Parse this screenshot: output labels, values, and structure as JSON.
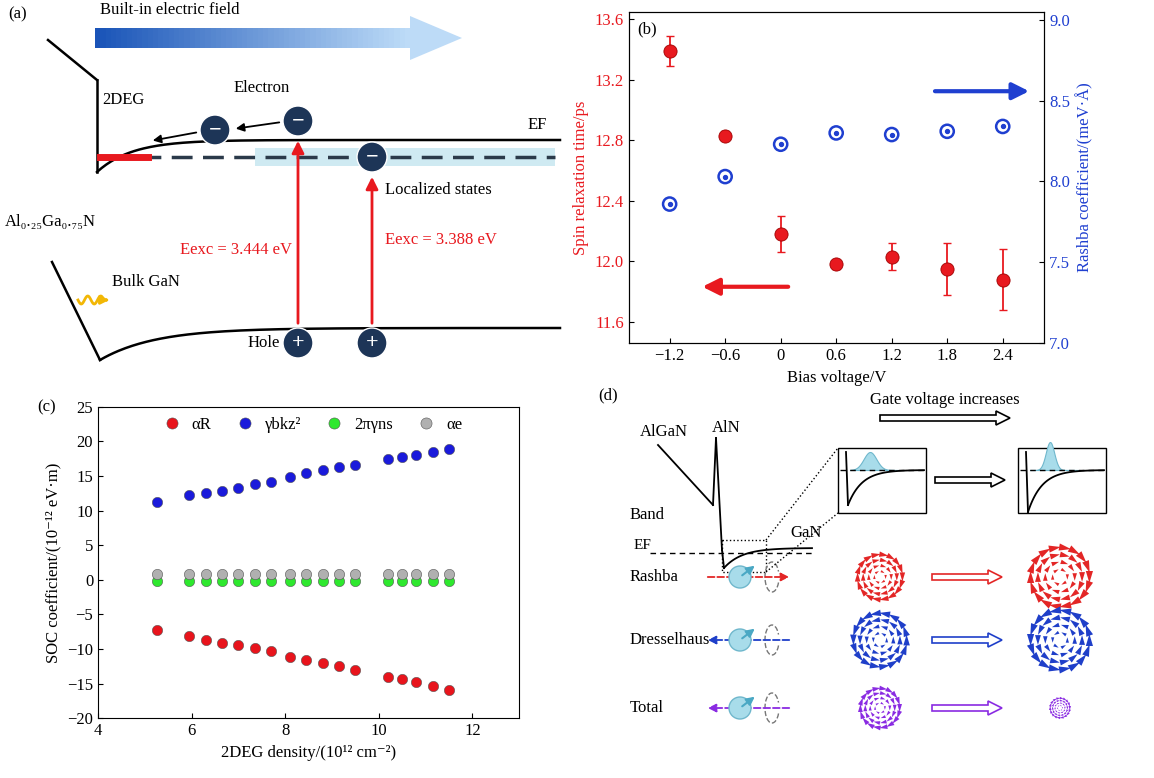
{
  "chart_data": [
    {
      "type": "scatter",
      "title": "(b)",
      "xlabel": "Bias voltage/V",
      "ylabel": "Spin relaxation time/ps",
      "y2label": "Rashba coefficient/(meV·Å)",
      "x": [
        -1.2,
        -0.6,
        0,
        0.6,
        1.2,
        1.8,
        2.4
      ],
      "xlim": [
        -1.64,
        2.85
      ],
      "xticks": [
        {
          "value": -1.2,
          "label": "−1.2"
        },
        {
          "value": -0.6,
          "label": "−0.6"
        },
        0,
        0.6,
        1.2,
        1.8,
        2.4
      ],
      "ylim": [
        11.46,
        13.65
      ],
      "yticks": [
        11.6,
        12.0,
        12.4,
        12.8,
        13.2,
        13.6
      ],
      "y2lim": [
        7.0,
        9.05
      ],
      "y2ticks": [
        7.0,
        7.5,
        8.0,
        8.5,
        9.0
      ],
      "series": [
        {
          "color": "#e8191f",
          "marker": "o",
          "values": [
            13.39,
            12.83,
            12.18,
            11.98,
            12.03,
            11.95,
            11.88
          ],
          "errors": [
            0.1,
            0.03,
            0.12,
            0.03,
            0.09,
            0.17,
            0.2
          ]
        },
        {
          "color": "#1f3fd0",
          "marker": "circle-dot",
          "axis": "y2",
          "values": [
            7.86,
            8.03,
            8.23,
            8.3,
            8.29,
            8.31,
            8.34
          ]
        }
      ]
    },
    {
      "type": "scatter",
      "title": "(c)",
      "xlabel": "2DEG density/(10¹² cm⁻²)",
      "ylabel": "SOC coefficient/(10⁻¹² eV·m)",
      "x": [
        5.25,
        5.95,
        6.3,
        6.65,
        7.0,
        7.35,
        7.7,
        8.1,
        8.45,
        8.8,
        9.15,
        9.5,
        10.2,
        10.5,
        10.8,
        11.15,
        11.5
      ],
      "xlim": [
        4,
        13
      ],
      "xticks": [
        4,
        6,
        8,
        10,
        12
      ],
      "ylim": [
        -20,
        25
      ],
      "yticks": [
        {
          "value": -20,
          "label": "−20"
        },
        {
          "value": -15,
          "label": "−15"
        },
        {
          "value": -10,
          "label": "−10"
        },
        {
          "value": -5,
          "label": "−5"
        },
        0,
        5,
        10,
        15,
        20,
        25
      ],
      "legend": "upper center",
      "series": [
        {
          "name": "αR",
          "color": "#e8141c",
          "marker": "o",
          "values": [
            -7.2,
            -8.2,
            -8.7,
            -9.1,
            -9.5,
            -9.9,
            -10.3,
            -11.2,
            -11.6,
            -12.0,
            -12.5,
            -13.0,
            -14.0,
            -14.4,
            -14.8,
            -15.3,
            -15.9
          ]
        },
        {
          "name": "γbkz²",
          "color": "#1a1adb",
          "marker": "o",
          "values": [
            11.2,
            12.2,
            12.6,
            12.9,
            13.3,
            13.8,
            14.1,
            14.9,
            15.4,
            15.9,
            16.3,
            16.6,
            17.4,
            17.7,
            18.0,
            18.5,
            18.9
          ]
        },
        {
          "name": "2πγns",
          "color": "#2ee82e",
          "marker": "o",
          "values": [
            -0.2,
            -0.2,
            -0.2,
            -0.2,
            -0.2,
            -0.2,
            -0.2,
            -0.2,
            -0.2,
            -0.2,
            -0.2,
            -0.2,
            -0.2,
            -0.2,
            -0.2,
            -0.2,
            -0.2
          ]
        },
        {
          "name": "αe",
          "color": "#b0b0b0",
          "marker": "o",
          "values": [
            0.9,
            0.9,
            0.9,
            0.9,
            0.9,
            0.9,
            0.9,
            0.9,
            0.9,
            0.9,
            0.9,
            0.9,
            0.9,
            0.9,
            0.9,
            0.9,
            0.9
          ]
        }
      ]
    }
  ],
  "diagram_a": {
    "panel": "(a)",
    "field_label": "Built-in electric field",
    "labels": {
      "twodeg": "2DEG",
      "electron": "Electron",
      "fermi": "EF",
      "localized": "Localized states",
      "barrier": "Al₀.₂₅Ga₀.₇₅N",
      "bulk": "Bulk GaN",
      "exc1": "Eexc = 3.444 eV",
      "exc2": "Eexc = 3.388 eV",
      "hole": "Hole"
    },
    "electron_sign": "−",
    "hole_sign": "+"
  },
  "diagram_d": {
    "panel": "(d)",
    "gate_label": "Gate voltage increases",
    "band_labels": {
      "algan": "AlGaN",
      "aln": "AlN",
      "gan": "GaN",
      "fermi": "EF"
    },
    "row_labels": [
      "Band",
      "Rashba",
      "Dresselhaus",
      "Total"
    ]
  }
}
